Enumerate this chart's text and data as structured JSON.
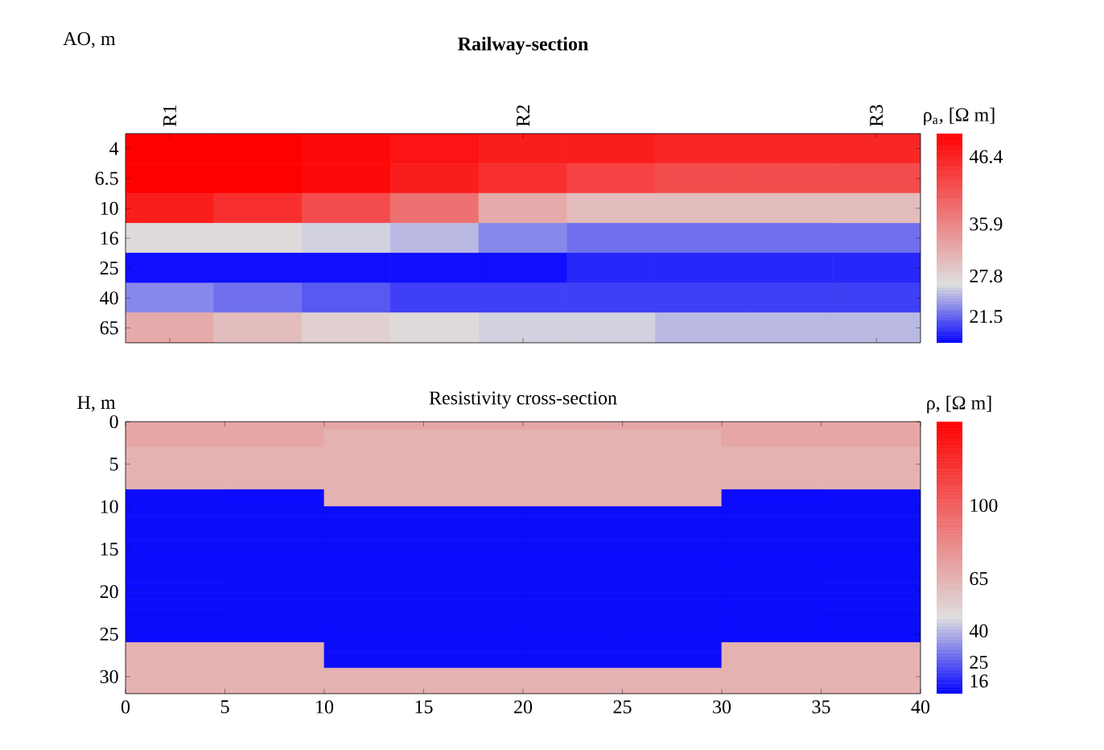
{
  "chart_data": [
    {
      "type": "heatmap",
      "title": "Railway-section",
      "ylabel": "AO, m",
      "clabel": "ρ$_{a}$, [Ω m]",
      "categories": [
        "R1",
        null,
        null,
        null,
        "R2",
        null,
        null,
        null,
        "R3"
      ],
      "y_categories": [
        "4",
        "6.5",
        "10",
        "16",
        "25",
        "40",
        "65"
      ],
      "cells": [
        [
          50,
          50,
          49,
          48,
          47,
          47,
          46,
          46,
          46
        ],
        [
          50,
          50,
          49,
          47,
          45,
          43,
          42,
          42,
          42
        ],
        [
          47,
          45,
          42,
          38,
          32,
          30,
          30,
          30,
          30
        ],
        [
          27,
          27,
          26,
          25,
          23,
          22,
          22,
          22,
          22
        ],
        [
          18,
          18,
          18,
          18,
          18,
          19,
          19,
          19,
          19
        ],
        [
          23,
          22,
          21,
          20,
          20,
          20,
          20,
          20,
          20
        ],
        [
          32,
          30,
          28,
          27,
          26,
          26,
          25,
          25,
          25
        ]
      ],
      "clim": [
        17.4,
        50
      ],
      "cticks": [
        21.5,
        27.8,
        35.9,
        46.4
      ]
    },
    {
      "type": "heatmap",
      "title": "Resistivity cross-section",
      "ylabel": "H, m",
      "clabel": "ρ, [Ω m]",
      "xlim": [
        0,
        40
      ],
      "xticks": [
        0,
        5,
        10,
        15,
        20,
        25,
        30,
        35,
        40
      ],
      "ylim": [
        32,
        0
      ],
      "yticks": [
        0,
        5,
        10,
        15,
        20,
        25,
        30
      ],
      "cells": [
        [
          70,
          70,
          70,
          70,
          70,
          70,
          70,
          70
        ],
        [
          70,
          70,
          65,
          65,
          65,
          65,
          70,
          70
        ],
        [
          70,
          70,
          65,
          65,
          65,
          65,
          70,
          70
        ],
        [
          65,
          65,
          65,
          65,
          65,
          65,
          65,
          65
        ],
        [
          65,
          65,
          65,
          65,
          65,
          65,
          65,
          65
        ],
        [
          65,
          65,
          65,
          65,
          65,
          65,
          65,
          65
        ],
        [
          65,
          65,
          65,
          65,
          65,
          65,
          65,
          65
        ],
        [
          65,
          65,
          65,
          65,
          65,
          65,
          65,
          65
        ],
        [
          12,
          12,
          65,
          65,
          65,
          65,
          12,
          12
        ],
        [
          12,
          12,
          65,
          65,
          65,
          65,
          12,
          12
        ],
        [
          12,
          12,
          12,
          12,
          12,
          12,
          12,
          12
        ],
        [
          12,
          12,
          12,
          12,
          12,
          12,
          12,
          12
        ],
        [
          12,
          12,
          12,
          12,
          12,
          12,
          12,
          12
        ],
        [
          12,
          12,
          12,
          12,
          12,
          12,
          12,
          12
        ],
        [
          12,
          12,
          12,
          12,
          12,
          12,
          12,
          12
        ],
        [
          12,
          12,
          12,
          12,
          12,
          12,
          12,
          12
        ],
        [
          12,
          12,
          12,
          12,
          12,
          12,
          12,
          12
        ],
        [
          12,
          12,
          12,
          12,
          12,
          12,
          12,
          12
        ],
        [
          12,
          12,
          12,
          12,
          12,
          12,
          12,
          12
        ],
        [
          12,
          12,
          12,
          12,
          12,
          12,
          12,
          12
        ],
        [
          12,
          12,
          12,
          12,
          12,
          12,
          12,
          12
        ],
        [
          12,
          12,
          12,
          12,
          12,
          12,
          12,
          12
        ],
        [
          12,
          12,
          12,
          12,
          12,
          12,
          12,
          12
        ],
        [
          12,
          12,
          12,
          12,
          12,
          12,
          12,
          12
        ],
        [
          12,
          12,
          12,
          12,
          12,
          12,
          12,
          12
        ],
        [
          12,
          12,
          12,
          12,
          12,
          12,
          12,
          12
        ],
        [
          65,
          65,
          12,
          12,
          12,
          12,
          65,
          65
        ],
        [
          65,
          65,
          12,
          12,
          12,
          12,
          65,
          65
        ],
        [
          65,
          65,
          12,
          12,
          12,
          12,
          65,
          65
        ],
        [
          65,
          65,
          65,
          65,
          65,
          65,
          65,
          65
        ],
        [
          65,
          65,
          65,
          65,
          65,
          65,
          65,
          65
        ],
        [
          65,
          65,
          65,
          65,
          65,
          65,
          65,
          65
        ]
      ],
      "clim": [
        10,
        140
      ],
      "cticks": [
        16,
        25,
        40,
        65,
        100
      ]
    }
  ]
}
